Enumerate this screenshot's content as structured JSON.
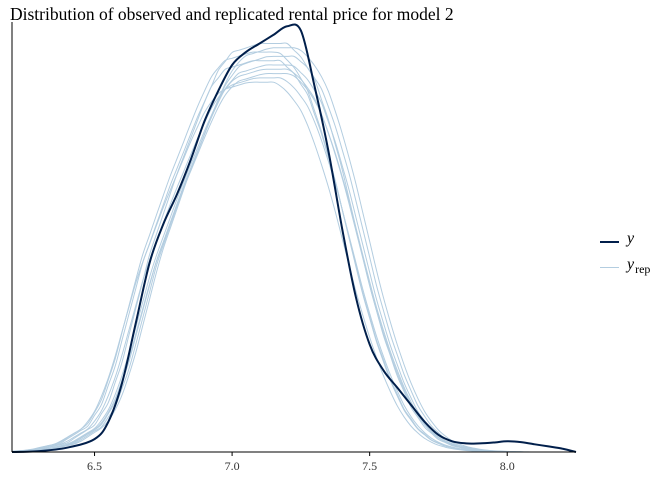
{
  "chart_data": {
    "type": "line",
    "title": "Distribution of observed and replicated rental price for model 2",
    "xlim": [
      6.2,
      8.25
    ],
    "ylim": [
      0,
      1.0
    ],
    "xticks": [
      6.5,
      7.0,
      7.5,
      8.0
    ],
    "xtick_labels": [
      "6.5",
      "7.0",
      "7.5",
      "8.0"
    ],
    "y_axis_labels": false,
    "grid": false,
    "legend": {
      "position": "right"
    },
    "colors": {
      "y": "#011f4b",
      "y_rep": "#b3cde0"
    },
    "observed": {
      "name": "y",
      "x": [
        6.2,
        6.3,
        6.4,
        6.5,
        6.55,
        6.6,
        6.65,
        6.7,
        6.75,
        6.8,
        6.85,
        6.9,
        6.95,
        7.0,
        7.05,
        7.1,
        7.15,
        7.2,
        7.25,
        7.3,
        7.35,
        7.4,
        7.45,
        7.5,
        7.55,
        7.6,
        7.65,
        7.7,
        7.75,
        7.8,
        7.85,
        7.9,
        7.95,
        8.0,
        8.05,
        8.1,
        8.15,
        8.2,
        8.25
      ],
      "y": [
        0.0,
        0.002,
        0.01,
        0.03,
        0.07,
        0.16,
        0.3,
        0.44,
        0.53,
        0.6,
        0.68,
        0.77,
        0.84,
        0.9,
        0.93,
        0.95,
        0.97,
        0.99,
        0.98,
        0.85,
        0.7,
        0.52,
        0.36,
        0.25,
        0.19,
        0.15,
        0.11,
        0.07,
        0.04,
        0.025,
        0.02,
        0.02,
        0.022,
        0.025,
        0.023,
        0.018,
        0.013,
        0.008,
        0.0
      ]
    },
    "replicated_mean": {
      "x": [
        6.2,
        6.3,
        6.4,
        6.5,
        6.55,
        6.6,
        6.65,
        6.7,
        6.75,
        6.8,
        6.85,
        6.9,
        6.95,
        7.0,
        7.05,
        7.1,
        7.15,
        7.2,
        7.25,
        7.3,
        7.35,
        7.4,
        7.45,
        7.5,
        7.55,
        7.6,
        7.65,
        7.7,
        7.75,
        7.8,
        7.85,
        7.9,
        7.95,
        8.0,
        8.05
      ],
      "y": [
        0.0,
        0.005,
        0.02,
        0.06,
        0.11,
        0.2,
        0.32,
        0.44,
        0.53,
        0.62,
        0.7,
        0.78,
        0.85,
        0.89,
        0.9,
        0.91,
        0.91,
        0.91,
        0.88,
        0.83,
        0.74,
        0.63,
        0.5,
        0.37,
        0.26,
        0.17,
        0.1,
        0.055,
        0.028,
        0.014,
        0.007,
        0.003,
        0.0015,
        0.0005,
        0.0
      ]
    },
    "replicated_peaks": [
      0.86,
      0.93,
      0.87,
      0.95,
      0.89,
      0.9,
      0.92,
      0.91,
      0.88,
      0.94
    ],
    "replicated_shifts": [
      -0.04,
      -0.03,
      -0.015,
      0.0,
      0.01,
      0.02,
      0.03,
      -0.025,
      0.015,
      0.04
    ],
    "legend_labels": {
      "y": "y",
      "y_rep": "y",
      "y_rep_sub": "rep"
    }
  }
}
